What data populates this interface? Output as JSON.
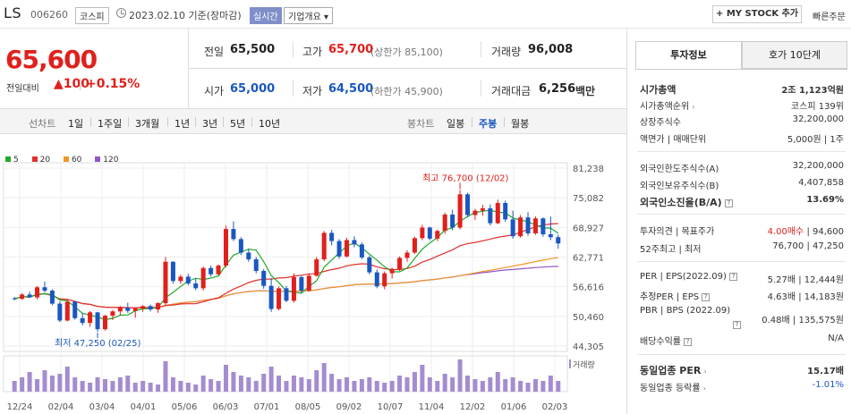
{
  "header": {
    "name": "LS",
    "code": "006260",
    "market": "코스피",
    "date": "2023.02.10 기준(장마감)",
    "realtime": "실시간",
    "corp": "기업개요 ▾",
    "mystock": "+ MY STOCK 추가",
    "quick": "빠른주문"
  },
  "quote": {
    "price": "65,600",
    "chg_label": "전일대비",
    "chg": "▲100",
    "pct": "+0.15%",
    "prev_label": "전일",
    "prev": "65,500",
    "high_label": "고가",
    "high": "65,700",
    "upper": "(상한가 85,100)",
    "vol_label": "거래량",
    "vol": "96,008",
    "open_label": "시가",
    "open": "65,000",
    "low_label": "저가",
    "low": "64,500",
    "lower": "(하한가 45,900)",
    "amt_label": "거래대금",
    "amt": "6,256",
    "amt_unit": "백만"
  },
  "tabs": {
    "line_label": "선차트",
    "periods": [
      "1일",
      "1주일",
      "3개월",
      "1년",
      "3년",
      "5년",
      "10년"
    ],
    "candle_label": "봉차트",
    "candles": [
      "일봉",
      "주봉",
      "월봉"
    ],
    "active": "주봉"
  },
  "legend": [
    {
      "name": "5",
      "color": "#1faa2a"
    },
    {
      "name": "20",
      "color": "#e0302c"
    },
    {
      "name": "60",
      "color": "#f0962a"
    },
    {
      "name": "120",
      "color": "#9355c9"
    }
  ],
  "chart_data": {
    "type": "candlestick",
    "title": "",
    "y_ticks": [
      "81,238",
      "75,082",
      "68,927",
      "62,771",
      "56,616",
      "50,460",
      "44,305"
    ],
    "ylim": [
      44305,
      81238
    ],
    "x_ticks": [
      "12/24",
      "02/04",
      "03/04",
      "04/01",
      "05/06",
      "06/03",
      "07/01",
      "08/05",
      "09/02",
      "10/07",
      "11/04",
      "12/02",
      "01/06",
      "02/03"
    ],
    "high_annot": "최고 76,700 (12/02)",
    "low_annot": "최저 47,250 (02/25)",
    "vol_label": "거래량",
    "candles": [
      [
        54200,
        54500,
        53800,
        54100
      ],
      [
        54100,
        55300,
        53900,
        55000
      ],
      [
        55000,
        55600,
        54300,
        54400
      ],
      [
        54400,
        56800,
        54000,
        56500
      ],
      [
        56500,
        57700,
        55400,
        55800
      ],
      [
        55800,
        56100,
        52800,
        53100
      ],
      [
        53100,
        53600,
        49300,
        49600
      ],
      [
        49600,
        53900,
        49400,
        53500
      ],
      [
        53500,
        53700,
        49800,
        50100
      ],
      [
        50100,
        51200,
        48600,
        49100
      ],
      [
        49100,
        51600,
        48300,
        51300
      ],
      [
        51300,
        51400,
        47250,
        47800
      ],
      [
        47800,
        50800,
        47500,
        50600
      ],
      [
        50600,
        51800,
        49700,
        51500
      ],
      [
        51500,
        52600,
        50700,
        52300
      ],
      [
        52300,
        53300,
        51200,
        51600
      ],
      [
        51600,
        52300,
        50200,
        52100
      ],
      [
        52100,
        52800,
        51400,
        52600
      ],
      [
        52600,
        52900,
        51500,
        51900
      ],
      [
        51900,
        53400,
        51200,
        53200
      ],
      [
        53200,
        62800,
        52800,
        61800
      ],
      [
        61800,
        61900,
        57300,
        57800
      ],
      [
        57800,
        59100,
        57200,
        58700
      ],
      [
        58700,
        59300,
        56900,
        57300
      ],
      [
        57300,
        58400,
        55900,
        56300
      ],
      [
        56300,
        60800,
        55800,
        60500
      ],
      [
        60500,
        61000,
        58700,
        59200
      ],
      [
        59200,
        61200,
        59000,
        61000
      ],
      [
        61000,
        69300,
        60600,
        68600
      ],
      [
        68600,
        70200,
        66100,
        66500
      ],
      [
        66500,
        66900,
        63200,
        63700
      ],
      [
        63700,
        64500,
        61800,
        62300
      ],
      [
        62300,
        62800,
        59400,
        59900
      ],
      [
        59900,
        60300,
        56200,
        56800
      ],
      [
        56800,
        58400,
        51400,
        52000
      ],
      [
        52000,
        56700,
        51700,
        56300
      ],
      [
        56300,
        56800,
        53400,
        53700
      ],
      [
        53700,
        59400,
        53300,
        58600
      ],
      [
        58600,
        58900,
        55300,
        55800
      ],
      [
        55800,
        59400,
        55600,
        58900
      ],
      [
        58900,
        62800,
        58700,
        62300
      ],
      [
        62300,
        68200,
        61900,
        67800
      ],
      [
        67800,
        68400,
        65200,
        66100
      ],
      [
        66100,
        66500,
        62400,
        62900
      ],
      [
        62900,
        66800,
        62700,
        66300
      ],
      [
        66300,
        67100,
        64800,
        65400
      ],
      [
        65400,
        65800,
        62300,
        62700
      ],
      [
        62700,
        63100,
        59200,
        59600
      ],
      [
        59600,
        60200,
        56300,
        56700
      ],
      [
        56700,
        59800,
        56100,
        59400
      ],
      [
        59400,
        60600,
        58300,
        60200
      ],
      [
        60200,
        62900,
        59900,
        62600
      ],
      [
        62600,
        64200,
        61800,
        63700
      ],
      [
        63700,
        67000,
        63400,
        66700
      ],
      [
        66700,
        69500,
        66300,
        68900
      ],
      [
        68900,
        69100,
        66200,
        66600
      ],
      [
        66600,
        68500,
        66100,
        68200
      ],
      [
        68200,
        72000,
        67600,
        71600
      ],
      [
        71600,
        72600,
        68300,
        68900
      ],
      [
        68900,
        76700,
        68500,
        75800
      ],
      [
        75800,
        76100,
        71000,
        71500
      ],
      [
        71500,
        72800,
        70500,
        72400
      ],
      [
        72400,
        73600,
        71300,
        72900
      ],
      [
        72900,
        73700,
        69300,
        69800
      ],
      [
        69800,
        74700,
        69600,
        74000
      ],
      [
        74000,
        74500,
        70100,
        70600
      ],
      [
        70600,
        72400,
        66600,
        67100
      ],
      [
        67100,
        71500,
        66800,
        71000
      ],
      [
        71000,
        72100,
        67200,
        67700
      ],
      [
        67700,
        71200,
        67400,
        70800
      ],
      [
        70800,
        71000,
        67000,
        67500
      ],
      [
        67500,
        71200,
        66300,
        66900
      ],
      [
        66900,
        67400,
        64500,
        65600
      ]
    ],
    "volume": [
      30,
      40,
      55,
      35,
      60,
      45,
      50,
      70,
      40,
      30,
      25,
      40,
      35,
      30,
      40,
      45,
      25,
      30,
      25,
      20,
      85,
      40,
      30,
      25,
      20,
      45,
      35,
      30,
      75,
      55,
      45,
      40,
      30,
      50,
      70,
      45,
      30,
      45,
      40,
      35,
      60,
      80,
      50,
      35,
      40,
      30,
      35,
      40,
      30,
      25,
      30,
      45,
      40,
      55,
      75,
      40,
      30,
      50,
      40,
      90,
      45,
      35,
      30,
      40,
      55,
      35,
      40,
      30,
      25,
      35,
      30,
      45,
      30
    ]
  },
  "info": {
    "tab1": "투자정보",
    "tab2": "호가 10단계",
    "mcap_l": "시가총액",
    "mcap": "2조 1,123억원",
    "rank_l": "시가총액순위",
    "rank": "코스피 139위",
    "shares_l": "상장주식수",
    "shares": "32,200,000",
    "face_l": "액면가 | 매매단위",
    "face": "5,000원 | 1주",
    "flimit_l": "외국인한도주식수(A)",
    "flimit": "32,200,000",
    "fown_l": "외국인보유주식수(B)",
    "fown": "4,407,858",
    "frate_l": "외국인소진율(B/A)",
    "frate": "13.69%",
    "opinion_l": "투자의견 | 목표주가",
    "opinion": "4.00매수",
    "target": "94,600",
    "w52_l": "52주최고 | 최저",
    "w52": "76,700 | 47,250",
    "per_l": "PER | EPS(2022.09)",
    "per": "5.27배 | 12,444원",
    "eper_l": "추정PER | EPS",
    "eper": "4.63배 | 14,183원",
    "pbr_l": "PBR | BPS (2022.09)",
    "pbr": "0.48배 | 135,575원",
    "div_l": "배당수익률",
    "div": "N/A",
    "iper_l": "동일업종 PER",
    "iper": "15.17배",
    "irate_l": "동일업종 등락률",
    "irate": "-1.01%"
  }
}
